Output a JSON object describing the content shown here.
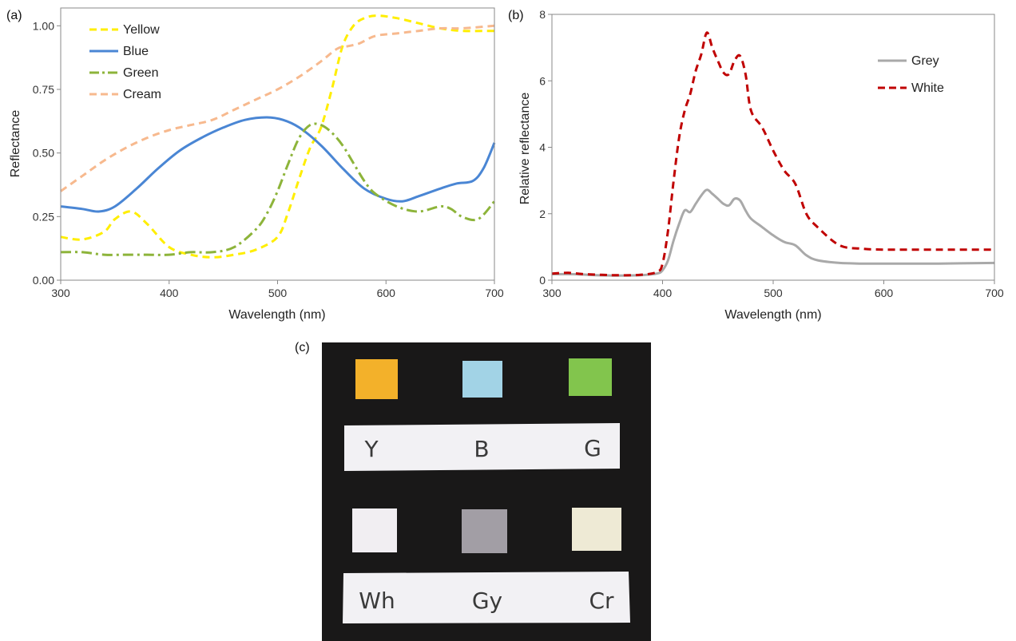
{
  "chart_data": [
    {
      "panel": "(a)",
      "type": "line",
      "xlabel": "Wavelength (nm)",
      "ylabel": "Reflectance",
      "xlim": [
        300,
        700
      ],
      "ylim": [
        0,
        1.07
      ],
      "xticks": [
        "300",
        "400",
        "500",
        "600",
        "700"
      ],
      "yticks": [
        "0.00",
        "0.25",
        "0.50",
        "0.75",
        "1.00"
      ],
      "legend_position": "top-left",
      "series": [
        {
          "name": "Yellow",
          "color": "#ffee00",
          "dash": "dashed",
          "x": [
            300,
            320,
            340,
            350,
            365,
            380,
            400,
            420,
            440,
            460,
            480,
            500,
            510,
            520,
            530,
            540,
            550,
            560,
            570,
            580,
            592,
            610,
            630,
            650,
            670,
            690,
            700
          ],
          "y": [
            0.17,
            0.16,
            0.19,
            0.24,
            0.27,
            0.22,
            0.13,
            0.1,
            0.09,
            0.1,
            0.12,
            0.17,
            0.27,
            0.4,
            0.52,
            0.6,
            0.75,
            0.92,
            1.0,
            1.03,
            1.04,
            1.03,
            1.01,
            0.99,
            0.98,
            0.98,
            0.98
          ]
        },
        {
          "name": "Blue",
          "color": "#4a86d4",
          "dash": "solid",
          "x": [
            300,
            320,
            335,
            350,
            370,
            390,
            410,
            430,
            450,
            470,
            490,
            505,
            520,
            540,
            560,
            580,
            600,
            615,
            630,
            650,
            665,
            680,
            690,
            700
          ],
          "y": [
            0.29,
            0.28,
            0.27,
            0.29,
            0.36,
            0.44,
            0.51,
            0.56,
            0.6,
            0.63,
            0.64,
            0.63,
            0.6,
            0.53,
            0.44,
            0.36,
            0.32,
            0.31,
            0.33,
            0.36,
            0.38,
            0.39,
            0.44,
            0.54
          ]
        },
        {
          "name": "Green",
          "color": "#8db43a",
          "dash": "dashdot",
          "x": [
            300,
            320,
            340,
            360,
            380,
            400,
            420,
            440,
            460,
            480,
            490,
            500,
            510,
            520,
            530,
            540,
            550,
            560,
            570,
            580,
            590,
            610,
            630,
            650,
            660,
            670,
            685,
            700
          ],
          "y": [
            0.11,
            0.11,
            0.1,
            0.1,
            0.1,
            0.1,
            0.11,
            0.11,
            0.13,
            0.2,
            0.26,
            0.35,
            0.46,
            0.56,
            0.61,
            0.61,
            0.58,
            0.53,
            0.46,
            0.39,
            0.34,
            0.29,
            0.27,
            0.29,
            0.28,
            0.25,
            0.24,
            0.31
          ]
        },
        {
          "name": "Cream",
          "color": "#f7b98e",
          "dash": "dashed",
          "x": [
            300,
            320,
            340,
            360,
            380,
            400,
            420,
            440,
            460,
            480,
            500,
            520,
            540,
            555,
            565,
            575,
            590,
            610,
            630,
            650,
            670,
            700
          ],
          "y": [
            0.35,
            0.41,
            0.47,
            0.52,
            0.56,
            0.59,
            0.61,
            0.63,
            0.67,
            0.71,
            0.75,
            0.8,
            0.86,
            0.91,
            0.92,
            0.93,
            0.96,
            0.97,
            0.98,
            0.99,
            0.99,
            1.0
          ]
        }
      ]
    },
    {
      "panel": "(b)",
      "type": "line",
      "xlabel": "Wavelength (nm)",
      "ylabel": "Relative reflectance",
      "xlim": [
        300,
        700
      ],
      "ylim": [
        0,
        8
      ],
      "xticks": [
        "300",
        "400",
        "500",
        "600",
        "700"
      ],
      "yticks": [
        "0",
        "2",
        "4",
        "6",
        "8"
      ],
      "legend_position": "top-right",
      "series": [
        {
          "name": "Grey",
          "color": "#a9a9a9",
          "dash": "solid",
          "x": [
            300,
            320,
            340,
            360,
            380,
            395,
            400,
            405,
            410,
            415,
            420,
            425,
            430,
            435,
            440,
            445,
            450,
            455,
            460,
            465,
            470,
            475,
            480,
            490,
            500,
            510,
            520,
            530,
            540,
            560,
            580,
            600,
            650,
            700
          ],
          "y": [
            0.18,
            0.18,
            0.15,
            0.14,
            0.15,
            0.2,
            0.3,
            0.6,
            1.2,
            1.7,
            2.1,
            2.05,
            2.3,
            2.55,
            2.72,
            2.6,
            2.45,
            2.3,
            2.25,
            2.45,
            2.4,
            2.1,
            1.85,
            1.6,
            1.35,
            1.15,
            1.05,
            0.75,
            0.6,
            0.52,
            0.5,
            0.5,
            0.5,
            0.52
          ]
        },
        {
          "name": "White",
          "color": "#c00000",
          "dash": "dashed",
          "x": [
            300,
            315,
            330,
            345,
            360,
            380,
            395,
            400,
            405,
            410,
            415,
            420,
            425,
            430,
            435,
            440,
            445,
            450,
            455,
            460,
            465,
            470,
            475,
            480,
            490,
            500,
            510,
            520,
            530,
            540,
            560,
            580,
            600,
            650,
            700
          ],
          "y": [
            0.2,
            0.22,
            0.18,
            0.16,
            0.15,
            0.16,
            0.25,
            0.5,
            1.5,
            3.0,
            4.3,
            5.1,
            5.6,
            6.3,
            6.8,
            7.45,
            7.0,
            6.6,
            6.25,
            6.2,
            6.6,
            6.75,
            6.2,
            5.1,
            4.6,
            3.9,
            3.3,
            2.9,
            2.0,
            1.6,
            1.05,
            0.95,
            0.92,
            0.92,
            0.92
          ]
        }
      ]
    }
  ],
  "photo": {
    "panel_label": "(c)",
    "swatches_top": [
      {
        "color": "#f3b12a"
      },
      {
        "color": "#a2d3e6"
      },
      {
        "color": "#82c54d"
      }
    ],
    "labels_top": [
      "Y",
      "B",
      "G"
    ],
    "swatches_bottom": [
      {
        "color": "#f1eef2"
      },
      {
        "color": "#a29ea5"
      },
      {
        "color": "#eeead5"
      }
    ],
    "labels_bottom": [
      "Wh",
      "Gy",
      "Cr"
    ],
    "board_color": "#191818",
    "card_color": "#f2f1f4"
  }
}
